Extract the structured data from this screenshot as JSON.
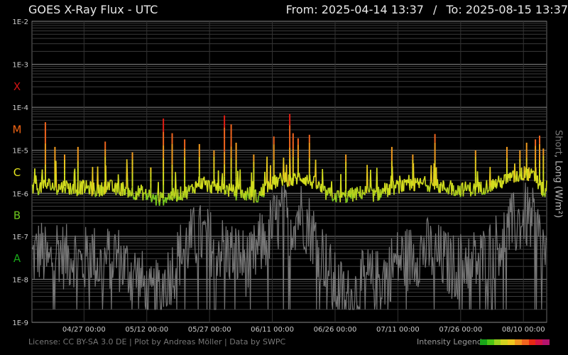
{
  "header": {
    "title": "GOES X-Ray Flux - UTC",
    "range_from": "From: 2025-04-14 13:37",
    "range_sep": "/",
    "range_to": "To: 2025-08-15 13:37"
  },
  "footer": {
    "license": "License: CC BY-SA 3.0 DE | Plot by Andreas Möller | Data by SWPC",
    "legend_label": "Intensity Legend",
    "legend_colors": [
      "#19a519",
      "#4cc514",
      "#9ad21e",
      "#d2d21e",
      "#f0c81e",
      "#f0961e",
      "#f0641e",
      "#e62814",
      "#d21446",
      "#b4146e"
    ]
  },
  "chart_data": {
    "type": "line",
    "title": "GOES X-Ray Flux - UTC",
    "ylabel": {
      "short": "Short",
      "sep": ", ",
      "long": "Long (W/m²)"
    },
    "yscale": "log",
    "ylim": [
      "1E-9",
      "1E-2"
    ],
    "y_ticks": [
      "1E-2",
      "1E-3",
      "1E-4",
      "1E-5",
      "1E-6",
      "1E-7",
      "1E-8",
      "1E-9"
    ],
    "flare_classes": [
      {
        "label": "X",
        "color": "#d21414",
        "level": 3.5
      },
      {
        "label": "M",
        "color": "#f06414",
        "level": 4.5
      },
      {
        "label": "C",
        "color": "#e6e61e",
        "level": 5.5
      },
      {
        "label": "B",
        "color": "#6ec81e",
        "level": 6.5
      },
      {
        "label": "A",
        "color": "#19a519",
        "level": 7.5
      }
    ],
    "x_range_days": [
      0,
      123
    ],
    "x_ticks": [
      {
        "label": "04/27 00:00",
        "day": 12.44
      },
      {
        "label": "05/12 00:00",
        "day": 27.44
      },
      {
        "label": "05/27 00:00",
        "day": 42.44
      },
      {
        "label": "06/11 00:00",
        "day": 57.44
      },
      {
        "label": "06/26 00:00",
        "day": 72.44
      },
      {
        "label": "07/11 00:00",
        "day": 87.44
      },
      {
        "label": "07/26 00:00",
        "day": 102.44
      },
      {
        "label": "08/10 00:00",
        "day": 117.44
      }
    ],
    "grid": true,
    "series": [
      {
        "name": "Long",
        "color": "gradient",
        "points": [
          [
            0,
            1.2e-06
          ],
          [
            2,
            1.4e-06
          ],
          [
            4,
            1.6e-06
          ],
          [
            6,
            1.3e-06
          ],
          [
            8,
            1.5e-06
          ],
          [
            10,
            1.2e-06
          ],
          [
            12,
            1.4e-06
          ],
          [
            14,
            1.3e-06
          ],
          [
            16,
            1.1e-06
          ],
          [
            18,
            1.6e-06
          ],
          [
            20,
            1.2e-06
          ],
          [
            22,
            1.3e-06
          ],
          [
            24,
            1e-06
          ],
          [
            26,
            1.1e-06
          ],
          [
            28,
            8e-07
          ],
          [
            30,
            7e-07
          ],
          [
            32,
            8e-07
          ],
          [
            34,
            9e-07
          ],
          [
            36,
            1e-06
          ],
          [
            38,
            1.2e-06
          ],
          [
            40,
            1.8e-06
          ],
          [
            42,
            1.5e-06
          ],
          [
            44,
            1.4e-06
          ],
          [
            46,
            1.3e-06
          ],
          [
            48,
            1.1e-06
          ],
          [
            50,
            9e-07
          ],
          [
            52,
            1e-06
          ],
          [
            54,
            8e-07
          ],
          [
            56,
            1.4e-06
          ],
          [
            58,
            1.8e-06
          ],
          [
            60,
            2.2e-06
          ],
          [
            62,
            1.9e-06
          ],
          [
            64,
            2.5e-06
          ],
          [
            66,
            2e-06
          ],
          [
            68,
            1.6e-06
          ],
          [
            70,
            1e-06
          ],
          [
            72,
            9e-07
          ],
          [
            74,
            8e-07
          ],
          [
            76,
            9e-07
          ],
          [
            78,
            1e-06
          ],
          [
            80,
            1.1e-06
          ],
          [
            82,
            9e-07
          ],
          [
            84,
            1.1e-06
          ],
          [
            86,
            1.3e-06
          ],
          [
            88,
            1.5e-06
          ],
          [
            90,
            1.4e-06
          ],
          [
            92,
            1.6e-06
          ],
          [
            94,
            1.7e-06
          ],
          [
            96,
            1.5e-06
          ],
          [
            98,
            1.4e-06
          ],
          [
            100,
            1.3e-06
          ],
          [
            102,
            1.2e-06
          ],
          [
            104,
            1.3e-06
          ],
          [
            106,
            1.2e-06
          ],
          [
            108,
            1.4e-06
          ],
          [
            110,
            1.6e-06
          ],
          [
            112,
            1.8e-06
          ],
          [
            114,
            2.2e-06
          ],
          [
            116,
            2.5e-06
          ],
          [
            118,
            3e-06
          ],
          [
            120,
            2.4e-06
          ],
          [
            122,
            1.2e-06
          ],
          [
            123,
            9e-07
          ]
        ],
        "peaks": [
          [
            3.2,
            4.5e-05
          ],
          [
            5.5,
            1.2e-05
          ],
          [
            7.8,
            8e-06
          ],
          [
            11,
            1.2e-05
          ],
          [
            17.5,
            1.6e-05
          ],
          [
            24,
            9e-06
          ],
          [
            28.4,
            4e-06
          ],
          [
            31.4,
            5.5e-05
          ],
          [
            33.5,
            2.5e-05
          ],
          [
            36.5,
            1.8e-05
          ],
          [
            40,
            1.4e-05
          ],
          [
            43.5,
            1e-05
          ],
          [
            46,
            6.5e-05
          ],
          [
            47.6,
            4e-05
          ],
          [
            48.8,
            1.5e-05
          ],
          [
            53,
            8e-06
          ],
          [
            57.8,
            2.1e-05
          ],
          [
            61.6,
            7e-05
          ],
          [
            62.4,
            2.5e-05
          ],
          [
            63.6,
            1.9e-05
          ],
          [
            66.3,
            2.3e-05
          ],
          [
            75,
            8e-06
          ],
          [
            86,
            1.2e-05
          ],
          [
            91,
            8e-06
          ],
          [
            96.3,
            2.4e-05
          ],
          [
            106,
            1e-05
          ],
          [
            113.5,
            1.2e-05
          ],
          [
            116.6,
            1e-05
          ],
          [
            118.2,
            1.5e-05
          ],
          [
            120.3,
            1.8e-05
          ],
          [
            121.3,
            2.2e-05
          ],
          [
            122.2,
            1.1e-05
          ]
        ]
      },
      {
        "name": "Short",
        "color": "#777777",
        "points": [
          [
            0,
            3e-08
          ],
          [
            2,
            5e-08
          ],
          [
            4,
            2e-08
          ],
          [
            6,
            6e-08
          ],
          [
            8,
            3e-08
          ],
          [
            10,
            4e-08
          ],
          [
            12,
            2e-08
          ],
          [
            14,
            5e-08
          ],
          [
            16,
            2e-08
          ],
          [
            18,
            3e-08
          ],
          [
            20,
            4e-08
          ],
          [
            22,
            2e-08
          ],
          [
            24,
            1.5e-08
          ],
          [
            26,
            1e-08
          ],
          [
            28,
            3e-09
          ],
          [
            30,
            5e-09
          ],
          [
            32,
            1e-08
          ],
          [
            34,
            2e-08
          ],
          [
            36,
            5e-08
          ],
          [
            38,
            8e-08
          ],
          [
            40,
            1e-07
          ],
          [
            42,
            8e-08
          ],
          [
            44,
            6e-08
          ],
          [
            46,
            5e-08
          ],
          [
            48,
            4e-08
          ],
          [
            50,
            3e-08
          ],
          [
            52,
            2e-08
          ],
          [
            54,
            5e-08
          ],
          [
            56,
            1e-07
          ],
          [
            58,
            2e-07
          ],
          [
            60,
            3e-07
          ],
          [
            62,
            2e-07
          ],
          [
            64,
            4e-07
          ],
          [
            66,
            2e-07
          ],
          [
            68,
            8e-08
          ],
          [
            70,
            3e-08
          ],
          [
            72,
            8e-09
          ],
          [
            74,
            5e-09
          ],
          [
            76,
            3e-09
          ],
          [
            78,
            6e-09
          ],
          [
            80,
            1e-08
          ],
          [
            82,
            8e-09
          ],
          [
            84,
            1.2e-08
          ],
          [
            86,
            2e-08
          ],
          [
            88,
            3e-08
          ],
          [
            90,
            3e-08
          ],
          [
            92,
            4e-08
          ],
          [
            94,
            5e-08
          ],
          [
            96,
            4e-08
          ],
          [
            98,
            3e-08
          ],
          [
            100,
            2e-08
          ],
          [
            102,
            2e-08
          ],
          [
            104,
            3e-08
          ],
          [
            106,
            2.5e-08
          ],
          [
            108,
            3e-08
          ],
          [
            110,
            5e-08
          ],
          [
            112,
            8e-08
          ],
          [
            114,
            1.5e-07
          ],
          [
            116,
            2e-07
          ],
          [
            118,
            3e-07
          ],
          [
            120,
            2e-07
          ],
          [
            122,
            6e-08
          ],
          [
            123,
            3e-08
          ]
        ],
        "floor": 2e-09
      }
    ]
  }
}
